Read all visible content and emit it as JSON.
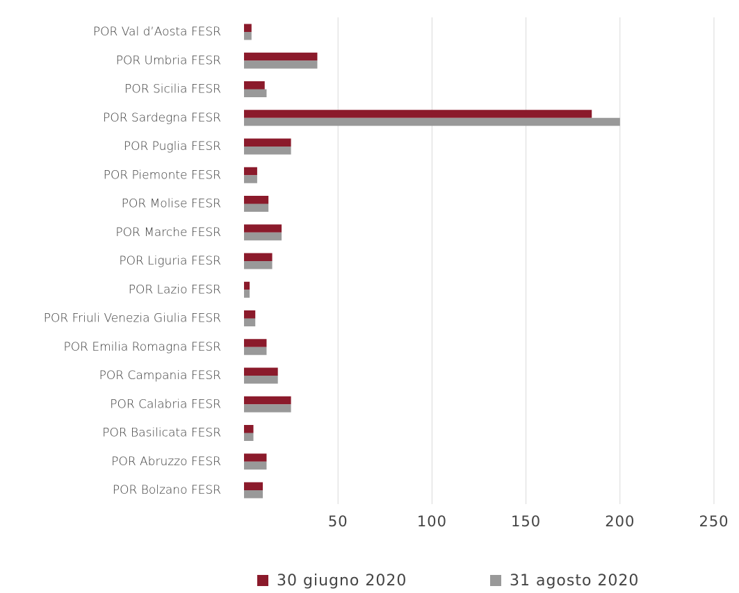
{
  "chart_data": {
    "type": "barh",
    "categories": [
      "POR Val d’Aosta FESR",
      "POR Umbria FESR",
      "POR Sicilia FESR",
      "POR Sardegna FESR",
      "POR Puglia FESR",
      "POR Piemonte FESR",
      "POR Molise FESR",
      "POR Marche FESR",
      "POR Liguria FESR",
      "POR Lazio FESR",
      "POR Friuli Venezia Giulia FESR",
      "POR Emilia Romagna FESR",
      "POR Campania FESR",
      "POR Calabria FESR",
      "POR Basilicata FESR",
      "POR Abruzzo FESR",
      "POR Bolzano FESR"
    ],
    "series": [
      {
        "name": "30 giugno 2020",
        "color": "#8b1a2b",
        "values": [
          4,
          39,
          11,
          185,
          25,
          7,
          13,
          20,
          15,
          3,
          6,
          12,
          18,
          25,
          5,
          12,
          10
        ]
      },
      {
        "name": "31 agosto 2020",
        "color": "#999999",
        "values": [
          4,
          39,
          12,
          200,
          25,
          7,
          13,
          20,
          15,
          3,
          6,
          12,
          18,
          25,
          5,
          12,
          10
        ]
      }
    ],
    "xlim": [
      0,
      250
    ],
    "xticks": [
      50,
      100,
      150,
      200,
      250
    ],
    "grid": true,
    "legend": "bottom"
  }
}
